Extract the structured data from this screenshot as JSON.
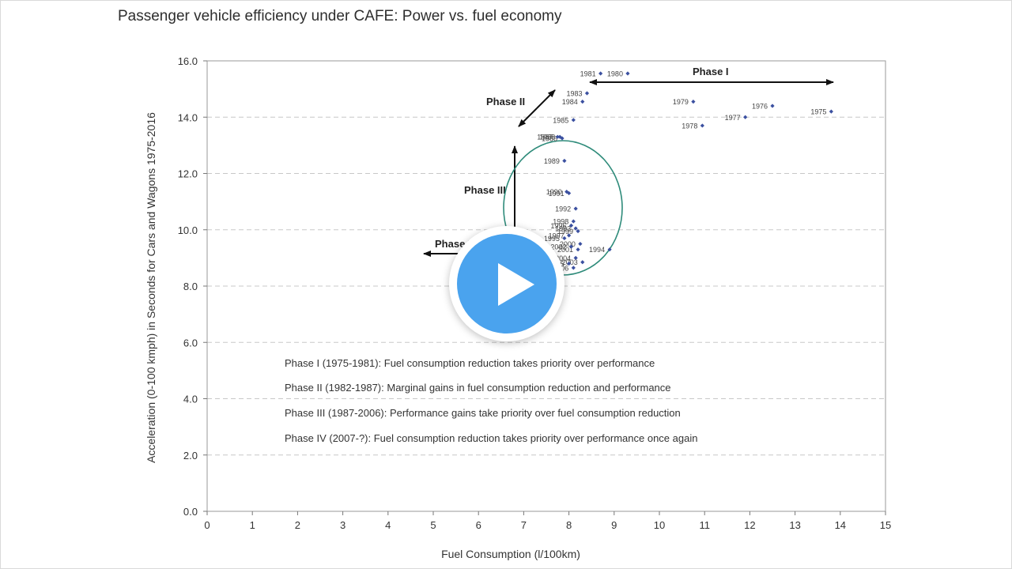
{
  "title": "Passenger vehicle efficiency under CAFE: Power vs. fuel economy",
  "play_button_label": "Play video",
  "chart_data": {
    "type": "scatter",
    "title": "Passenger vehicle efficiency under CAFE: Power vs. fuel economy",
    "xlabel": "Fuel Consumption (l/100km)",
    "ylabel": "Acceleration (0-100 kmph) in Seconds for Cars and Wagons 1975-2016",
    "xlim": [
      0,
      15
    ],
    "ylim": [
      0,
      16
    ],
    "x_ticks": [
      "0",
      "1",
      "2",
      "3",
      "4",
      "5",
      "6",
      "7",
      "8",
      "9",
      "10",
      "11",
      "12",
      "13",
      "14",
      "15"
    ],
    "y_ticks": [
      "0.0",
      "2.0",
      "4.0",
      "6.0",
      "8.0",
      "10.0",
      "12.0",
      "14.0",
      "16.0"
    ],
    "grid": "horizontal dashed",
    "series": [
      {
        "name": "Cars and Wagons",
        "color": "#3b50a0",
        "points": [
          {
            "label": "1975",
            "x": 13.8,
            "y": 14.2
          },
          {
            "label": "1976",
            "x": 12.5,
            "y": 14.4
          },
          {
            "label": "1977",
            "x": 11.9,
            "y": 14.0
          },
          {
            "label": "1978",
            "x": 10.95,
            "y": 13.7
          },
          {
            "label": "1979",
            "x": 10.75,
            "y": 14.55
          },
          {
            "label": "1980",
            "x": 9.3,
            "y": 15.55
          },
          {
            "label": "1981",
            "x": 8.7,
            "y": 15.55
          },
          {
            "label": "1983",
            "x": 8.4,
            "y": 14.85
          },
          {
            "label": "1984",
            "x": 8.3,
            "y": 14.55
          },
          {
            "label": "1985",
            "x": 8.1,
            "y": 13.9
          },
          {
            "label": "1986",
            "x": 7.85,
            "y": 13.25
          },
          {
            "label": "1987",
            "x": 7.75,
            "y": 13.3
          },
          {
            "label": "1988",
            "x": 7.8,
            "y": 13.3
          },
          {
            "label": "1989",
            "x": 7.9,
            "y": 12.45
          },
          {
            "label": "1990",
            "x": 7.95,
            "y": 11.35
          },
          {
            "label": "1991",
            "x": 8.0,
            "y": 11.3
          },
          {
            "label": "1992",
            "x": 8.15,
            "y": 10.75
          },
          {
            "label": "1993",
            "x": 8.15,
            "y": 10.05
          },
          {
            "label": "1994",
            "x": 8.9,
            "y": 9.3
          },
          {
            "label": "1995",
            "x": 7.9,
            "y": 9.7
          },
          {
            "label": "1996",
            "x": 8.05,
            "y": 10.15
          },
          {
            "label": "1997",
            "x": 8.0,
            "y": 9.8
          },
          {
            "label": "1998",
            "x": 8.1,
            "y": 10.3
          },
          {
            "label": "1999",
            "x": 8.2,
            "y": 9.95
          },
          {
            "label": "2000",
            "x": 8.25,
            "y": 9.5
          },
          {
            "label": "2001",
            "x": 8.2,
            "y": 9.3
          },
          {
            "label": "2002",
            "x": 8.05,
            "y": 9.4
          },
          {
            "label": "2003",
            "x": 8.3,
            "y": 8.85
          },
          {
            "label": "2004",
            "x": 8.15,
            "y": 9.0
          },
          {
            "label": "2005",
            "x": 8.0,
            "y": 8.8
          },
          {
            "label": "2006",
            "x": 8.1,
            "y": 8.65
          }
        ]
      }
    ],
    "annotations": {
      "phase_labels": [
        "Phase I",
        "Phase II",
        "Phase III",
        "Phase IV"
      ],
      "phase_notes": [
        "Phase I (1975-1981): Fuel consumption reduction takes priority over performance",
        "Phase II (1982-1987): Marginal gains in fuel consumption reduction and performance",
        "Phase III (1987-2006): Performance gains take priority over fuel consumption reduction",
        "Phase IV (2007-?): Fuel consumption reduction takes priority over performance once again"
      ]
    },
    "ellipse_color": "#2e8b7a"
  }
}
